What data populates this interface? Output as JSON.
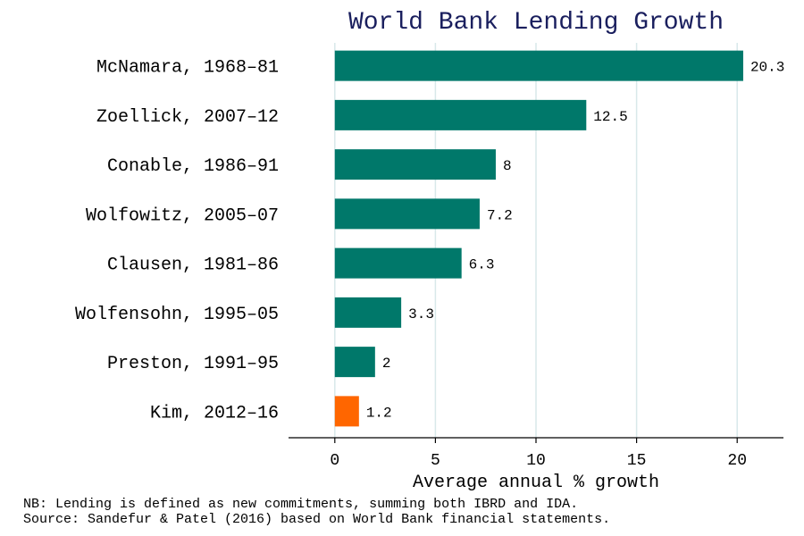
{
  "chart_data": {
    "type": "bar",
    "orientation": "horizontal",
    "title": "World Bank Lending Growth",
    "xlabel": "Average annual % growth",
    "ylabel": "",
    "categories": [
      "McNamara, 1968–81",
      "Zoellick, 2007–12",
      "Conable, 1986–91",
      "Wolfowitz, 2005–07",
      "Clausen, 1981–86",
      "Wolfensohn, 1995–05",
      "Preston, 1991–95",
      "Kim, 2012–16"
    ],
    "values": [
      20.3,
      12.5,
      8,
      7.2,
      6.3,
      3.3,
      2,
      1.2
    ],
    "value_labels": [
      "20.3",
      "12.5",
      "8",
      "7.2",
      "6.3",
      "3.3",
      "2",
      "1.2"
    ],
    "xlim": [
      -2.3,
      22.3
    ],
    "xticks": [
      0,
      5,
      10,
      15,
      20
    ],
    "grid": true,
    "colors": {
      "bar": "#00786A",
      "highlight": "#FF6600",
      "title": "#1A1F5E",
      "grid": "#D8E8EA"
    },
    "highlight_index": 7
  },
  "notes": {
    "line1": "NB: Lending is defined as new commitments, summing both IBRD and IDA.",
    "line2": "Source: Sandefur & Patel (2016) based on World Bank financial statements."
  }
}
